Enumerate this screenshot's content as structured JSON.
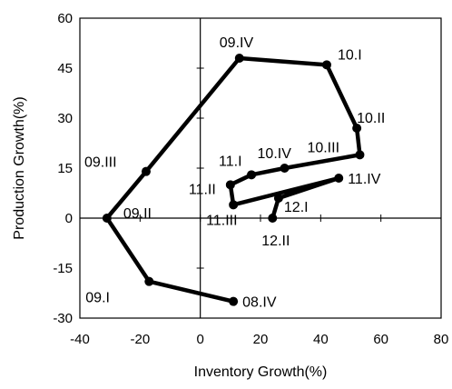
{
  "chart_data": {
    "type": "scatter",
    "xlabel": "Inventory Growth(%)",
    "ylabel": "Production Growth(%)",
    "xlim": [
      -40,
      80
    ],
    "ylim": [
      -30,
      60
    ],
    "xticks": [
      "-40",
      "-20",
      "0",
      "20",
      "40",
      "60",
      "80"
    ],
    "yticks": [
      "-30",
      "-15",
      "0",
      "15",
      "30",
      "45",
      "60"
    ],
    "grid": false,
    "connected": true,
    "series": [
      {
        "points": [
          {
            "label": "08.IV",
            "x": 11,
            "y": -25
          },
          {
            "label": "09.I",
            "x": -17,
            "y": -19
          },
          {
            "label": "09.II",
            "x": -31,
            "y": 0
          },
          {
            "label": "09.III",
            "x": -18,
            "y": 14
          },
          {
            "label": "09.IV",
            "x": 13,
            "y": 48
          },
          {
            "label": "10.I",
            "x": 42,
            "y": 46
          },
          {
            "label": "10.II",
            "x": 52,
            "y": 27
          },
          {
            "label": "10.III",
            "x": 53,
            "y": 19
          },
          {
            "label": "10.IV",
            "x": 28,
            "y": 15
          },
          {
            "label": "11.I",
            "x": 17,
            "y": 13
          },
          {
            "label": "11.II",
            "x": 10,
            "y": 10
          },
          {
            "label": "11.III",
            "x": 11,
            "y": 4
          },
          {
            "label": "11.IV",
            "x": 46,
            "y": 12
          },
          {
            "label": "12.I",
            "x": 26,
            "y": 6
          },
          {
            "label": "12.II",
            "x": 24,
            "y": 0
          }
        ]
      }
    ]
  }
}
